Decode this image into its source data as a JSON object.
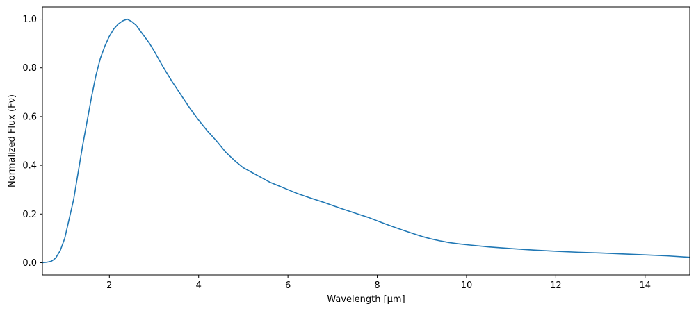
{
  "chart_data": {
    "type": "line",
    "title": "",
    "xlabel": "Wavelength [μm]",
    "ylabel": "Normalized Flux (Fν)",
    "xlim": [
      0.5,
      15.0
    ],
    "ylim": [
      -0.05,
      1.05
    ],
    "grid": false,
    "legend": "none",
    "x_ticks": [
      2,
      4,
      6,
      8,
      10,
      12,
      14
    ],
    "x_tick_labels": [
      "2",
      "4",
      "6",
      "8",
      "10",
      "12",
      "14"
    ],
    "y_ticks": [
      0.0,
      0.2,
      0.4,
      0.6,
      0.8,
      1.0
    ],
    "y_tick_labels": [
      "0.0",
      "0.2",
      "0.4",
      "0.6",
      "0.8",
      "1.0"
    ],
    "series": [
      {
        "color": "#1f77b4",
        "x": [
          0.5,
          0.6,
          0.7,
          0.75,
          0.8,
          0.9,
          1.0,
          1.1,
          1.2,
          1.3,
          1.4,
          1.5,
          1.6,
          1.7,
          1.8,
          1.9,
          2.0,
          2.1,
          2.2,
          2.3,
          2.4,
          2.5,
          2.6,
          2.7,
          2.8,
          2.9,
          3.0,
          3.2,
          3.4,
          3.6,
          3.8,
          4.0,
          4.2,
          4.4,
          4.6,
          4.8,
          5.0,
          5.2,
          5.4,
          5.6,
          5.8,
          6.0,
          6.2,
          6.4,
          6.6,
          6.8,
          7.0,
          7.2,
          7.4,
          7.6,
          7.8,
          8.0,
          8.2,
          8.4,
          8.6,
          8.8,
          9.0,
          9.2,
          9.4,
          9.6,
          9.8,
          10.0,
          10.5,
          11.0,
          11.5,
          12.0,
          12.5,
          13.0,
          13.5,
          14.0,
          14.5,
          15.0
        ],
        "values": [
          0.0,
          0.002,
          0.006,
          0.012,
          0.02,
          0.05,
          0.1,
          0.18,
          0.26,
          0.37,
          0.48,
          0.58,
          0.68,
          0.77,
          0.84,
          0.89,
          0.93,
          0.96,
          0.98,
          0.993,
          1.0,
          0.99,
          0.975,
          0.95,
          0.925,
          0.9,
          0.87,
          0.805,
          0.745,
          0.69,
          0.635,
          0.585,
          0.54,
          0.5,
          0.455,
          0.42,
          0.39,
          0.37,
          0.35,
          0.33,
          0.315,
          0.3,
          0.285,
          0.272,
          0.26,
          0.248,
          0.235,
          0.222,
          0.21,
          0.198,
          0.186,
          0.172,
          0.158,
          0.145,
          0.132,
          0.12,
          0.108,
          0.098,
          0.09,
          0.083,
          0.078,
          0.074,
          0.065,
          0.058,
          0.052,
          0.047,
          0.043,
          0.04,
          0.036,
          0.032,
          0.028,
          0.022
        ]
      }
    ]
  }
}
